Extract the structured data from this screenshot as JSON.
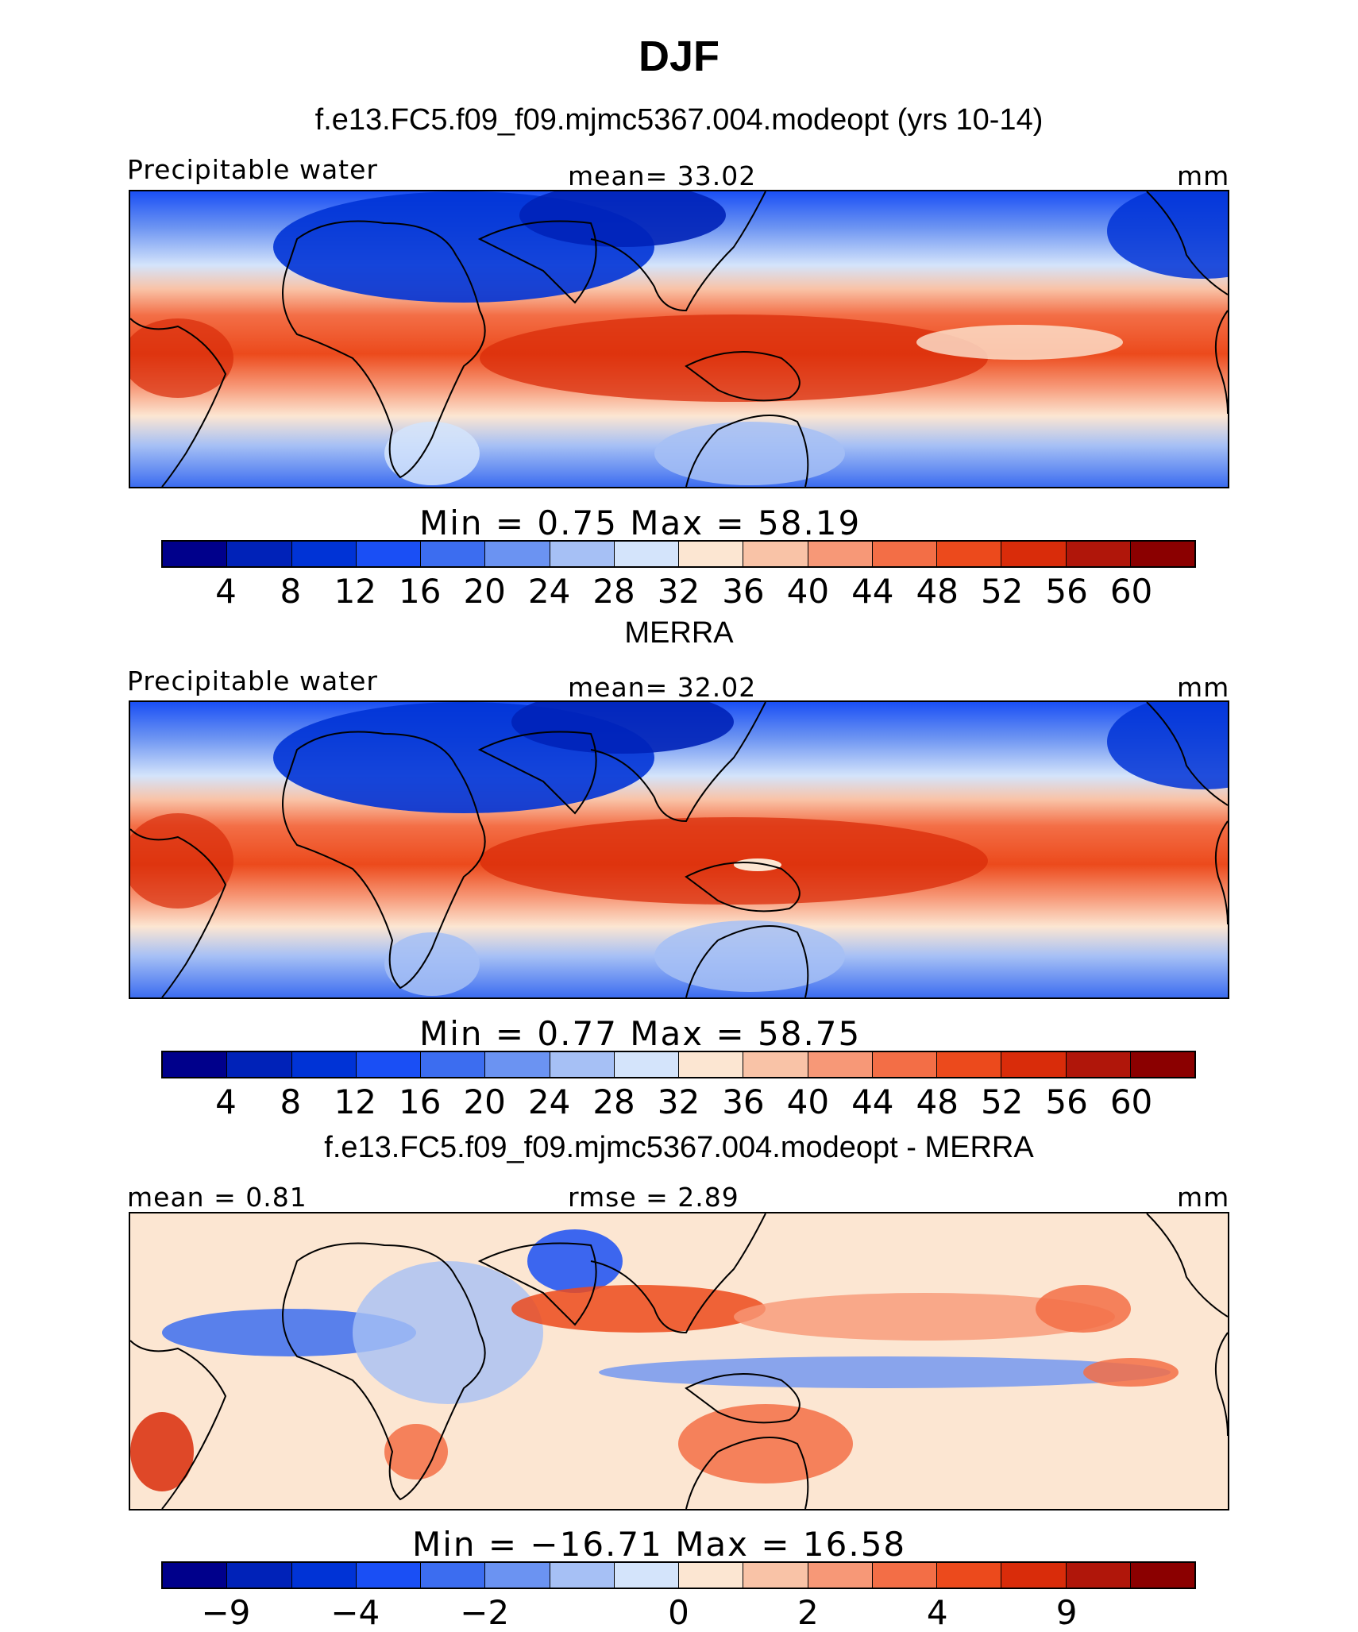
{
  "title": "DJF",
  "colors": {
    "full": [
      "#00008b",
      "#0022b8",
      "#0033d6",
      "#1a4ff5",
      "#3c6df0",
      "#6b93f2",
      "#a6c0f5",
      "#d4e4fb",
      "#fce6d2",
      "#f9c3a7",
      "#f79877",
      "#f36e46",
      "#ec4a1c",
      "#d92c0a",
      "#b0160a",
      "#8b0000"
    ],
    "diff": [
      "#00008b",
      "#0022b8",
      "#0033d6",
      "#1a4ff5",
      "#3c6df0",
      "#6b93f2",
      "#a6c0f5",
      "#d4e4fb",
      "#fce6d2",
      "#f9c3a7",
      "#f79877",
      "#f36e46",
      "#ec4a1c",
      "#d92c0a",
      "#b0160a",
      "#8b0000"
    ]
  },
  "panels": [
    {
      "title": "f.e13.FC5.f09_f09.mjmc5367.004.modeopt (yrs 10-14)",
      "left_label": "Precipitable water",
      "center_label": "mean=   33.02",
      "right_label": "mm",
      "stats": "Min  =    0.75  Max  =   58.19",
      "scale": "full",
      "ticks": [
        "4",
        "8",
        "12",
        "16",
        "20",
        "24",
        "28",
        "32",
        "36",
        "40",
        "44",
        "48",
        "52",
        "56",
        "60"
      ]
    },
    {
      "title": "MERRA",
      "left_label": "Precipitable water",
      "center_label": "mean=   32.02",
      "right_label": "mm",
      "stats": "Min  =    0.77  Max  =   58.75",
      "scale": "full",
      "ticks": [
        "4",
        "8",
        "12",
        "16",
        "20",
        "24",
        "28",
        "32",
        "36",
        "40",
        "44",
        "48",
        "52",
        "56",
        "60"
      ]
    },
    {
      "title": "f.e13.FC5.f09_f09.mjmc5367.004.modeopt - MERRA",
      "left_label": "mean  =    0.81",
      "center_label": "rmse  =    2.89",
      "right_label": "mm",
      "stats": "Min  = −16.71  Max  =   16.58",
      "scale": "diff",
      "ticks": [
        "−9",
        "−4",
        "−2",
        "0",
        "2",
        "4",
        "9"
      ]
    }
  ],
  "chart_data": [
    {
      "type": "heatmap",
      "title": "f.e13.FC5.f09_f09.mjmc5367.004.modeopt (yrs 10-14)",
      "variable": "Precipitable water",
      "units": "mm",
      "mean": 33.02,
      "min": 0.75,
      "max": 58.19,
      "contour_levels": [
        4,
        8,
        12,
        16,
        20,
        24,
        28,
        32,
        36,
        40,
        44,
        48,
        52,
        56,
        60
      ]
    },
    {
      "type": "heatmap",
      "title": "MERRA",
      "variable": "Precipitable water",
      "units": "mm",
      "mean": 32.02,
      "min": 0.77,
      "max": 58.75,
      "contour_levels": [
        4,
        8,
        12,
        16,
        20,
        24,
        28,
        32,
        36,
        40,
        44,
        48,
        52,
        56,
        60
      ]
    },
    {
      "type": "heatmap",
      "title": "f.e13.FC5.f09_f09.mjmc5367.004.modeopt - MERRA",
      "units": "mm",
      "mean": 0.81,
      "rmse": 2.89,
      "min": -16.71,
      "max": 16.58,
      "contour_levels": [
        -9,
        -4,
        -2,
        0,
        2,
        4,
        9
      ]
    }
  ]
}
